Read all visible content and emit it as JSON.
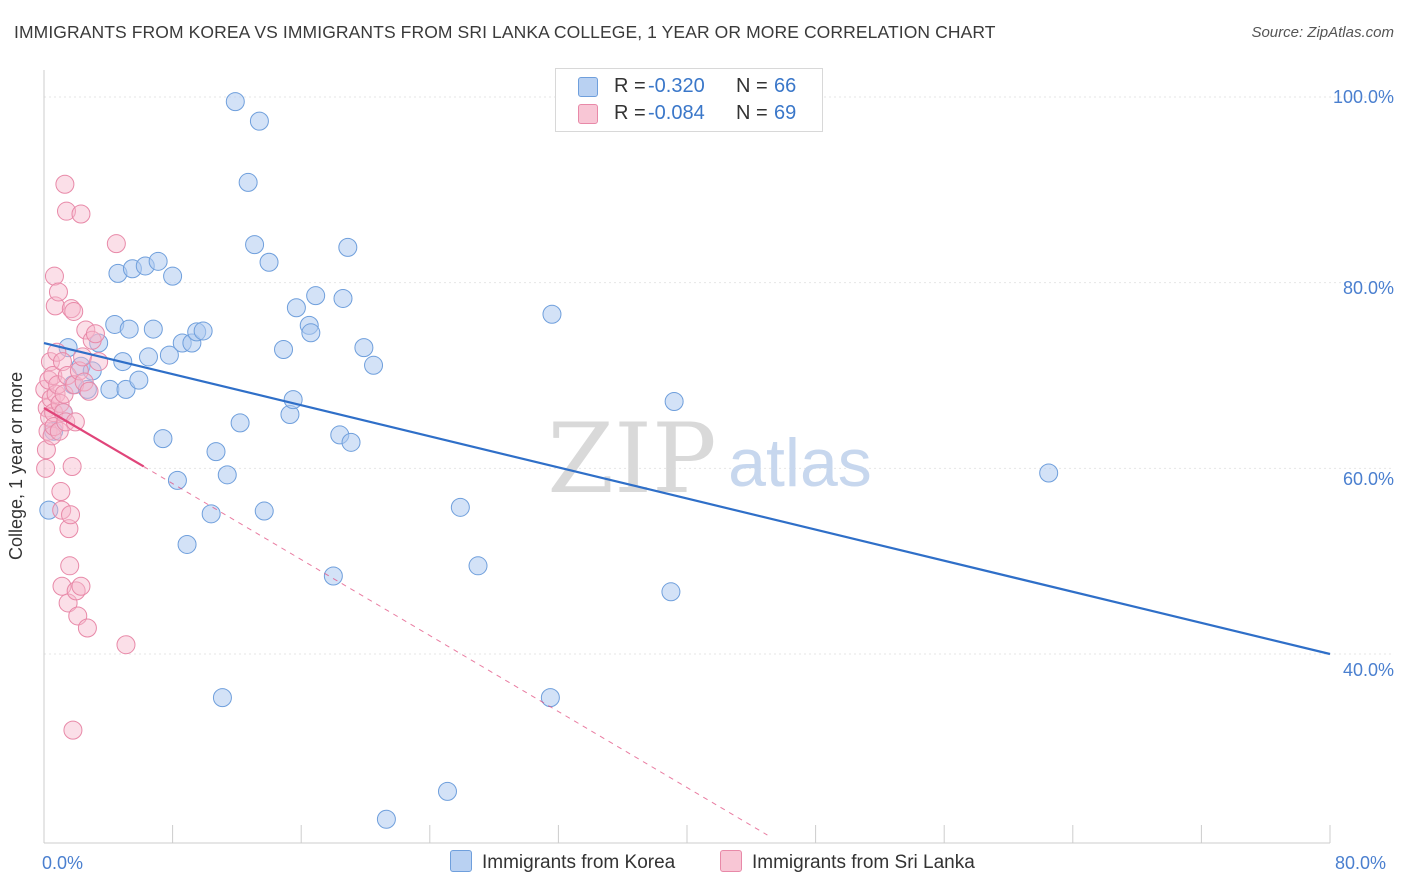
{
  "title": "IMMIGRANTS FROM KOREA VS IMMIGRANTS FROM SRI LANKA COLLEGE, 1 YEAR OR MORE CORRELATION CHART",
  "source": "Source: ZipAtlas.com",
  "watermark": {
    "zip": "ZIP",
    "atlas": "atlas"
  },
  "legend_top": {
    "rows": [
      {
        "r_label": "R =",
        "r_value": "-0.320",
        "n_label": "N =",
        "n_value": "66"
      },
      {
        "r_label": "R =",
        "r_value": "-0.084",
        "n_label": "N =",
        "n_value": "69"
      }
    ]
  },
  "legend_bottom": {
    "korea": "Immigrants from Korea",
    "srilanka": "Immigrants from Sri Lanka"
  },
  "colors": {
    "korea_fill": "#aecbf0",
    "korea_stroke": "#6f9fdc",
    "korea_line": "#2f6fc8",
    "srilanka_fill": "#f6b8cb",
    "srilanka_stroke": "#e889a8",
    "srilanka_line": "#e0457a",
    "tick_text": "#4a7fcf",
    "grid": "#e6e6e6"
  },
  "chart_data": {
    "type": "scatter",
    "title": "IMMIGRANTS FROM KOREA VS IMMIGRANTS FROM SRI LANKA COLLEGE, 1 YEAR OR MORE CORRELATION CHART",
    "xlabel": "",
    "ylabel": "College, 1 year or more",
    "xlim": [
      0,
      80
    ],
    "ylim": [
      20,
      102
    ],
    "x_tick_labels": [
      "0.0%",
      "80.0%"
    ],
    "y_ticks": [
      40,
      60,
      80,
      100
    ],
    "y_tick_labels": [
      "40.0%",
      "60.0%",
      "80.0%",
      "100.0%"
    ],
    "grid": true,
    "series": [
      {
        "name": "Immigrants from Korea",
        "r": -0.32,
        "n": 66,
        "trend": {
          "x0": 0,
          "y0": 73.5,
          "x1": 80,
          "y1": 40.0,
          "style": "solid"
        },
        "points": [
          [
            0.3,
            55.5
          ],
          [
            0.6,
            64
          ],
          [
            1.2,
            66
          ],
          [
            1.5,
            73
          ],
          [
            1.8,
            69
          ],
          [
            2.3,
            71
          ],
          [
            2.7,
            68.5
          ],
          [
            3.0,
            70.5
          ],
          [
            3.4,
            73.5
          ],
          [
            4.1,
            68.5
          ],
          [
            4.4,
            75.5
          ],
          [
            4.6,
            81
          ],
          [
            4.9,
            71.5
          ],
          [
            5.1,
            68.5
          ],
          [
            5.3,
            75
          ],
          [
            5.5,
            81.5
          ],
          [
            5.9,
            69.5
          ],
          [
            6.3,
            81.8
          ],
          [
            6.5,
            72
          ],
          [
            6.8,
            75
          ],
          [
            7.1,
            82.3
          ],
          [
            7.4,
            63.2
          ],
          [
            7.8,
            72.2
          ],
          [
            8.0,
            80.7
          ],
          [
            8.3,
            58.7
          ],
          [
            8.6,
            73.5
          ],
          [
            8.9,
            51.8
          ],
          [
            9.2,
            73.5
          ],
          [
            9.5,
            74.7
          ],
          [
            9.9,
            74.8
          ],
          [
            10.4,
            55.1
          ],
          [
            10.7,
            61.8
          ],
          [
            11.1,
            35.3
          ],
          [
            11.4,
            59.3
          ],
          [
            11.9,
            99.5
          ],
          [
            12.2,
            64.9
          ],
          [
            12.7,
            90.8
          ],
          [
            13.1,
            84.1
          ],
          [
            13.4,
            97.4
          ],
          [
            13.7,
            55.4
          ],
          [
            14.0,
            82.2
          ],
          [
            14.9,
            72.8
          ],
          [
            15.3,
            65.8
          ],
          [
            15.5,
            67.4
          ],
          [
            15.7,
            77.3
          ],
          [
            16.5,
            75.4
          ],
          [
            16.6,
            74.6
          ],
          [
            16.9,
            78.6
          ],
          [
            18.0,
            48.4
          ],
          [
            18.4,
            63.6
          ],
          [
            18.6,
            78.3
          ],
          [
            18.9,
            83.8
          ],
          [
            19.1,
            62.8
          ],
          [
            19.9,
            73.0
          ],
          [
            20.5,
            71.1
          ],
          [
            21.3,
            22.2
          ],
          [
            25.1,
            25.2
          ],
          [
            25.9,
            55.8
          ],
          [
            27.0,
            49.5
          ],
          [
            31.5,
            35.3
          ],
          [
            31.6,
            76.6
          ],
          [
            39.0,
            46.7
          ],
          [
            39.2,
            67.2
          ],
          [
            62.5,
            59.5
          ]
        ]
      },
      {
        "name": "Immigrants from Sri Lanka",
        "r": -0.084,
        "n": 69,
        "trend_solid": {
          "x0": 0,
          "y0": 66.5,
          "x1": 6.2,
          "y1": 60.2
        },
        "trend_dashed": {
          "x0": 6.2,
          "y0": 60.2,
          "x1": 45,
          "y1": 20.5
        },
        "points": [
          [
            0.05,
            68.5
          ],
          [
            0.1,
            60
          ],
          [
            0.15,
            62
          ],
          [
            0.2,
            66.5
          ],
          [
            0.25,
            64
          ],
          [
            0.3,
            69.5
          ],
          [
            0.35,
            65.5
          ],
          [
            0.4,
            71.5
          ],
          [
            0.45,
            67.5
          ],
          [
            0.5,
            63.5
          ],
          [
            0.55,
            70
          ],
          [
            0.6,
            66
          ],
          [
            0.62,
            64.5
          ],
          [
            0.65,
            80.7
          ],
          [
            0.7,
            77.5
          ],
          [
            0.75,
            68
          ],
          [
            0.8,
            72.5
          ],
          [
            0.85,
            69
          ],
          [
            0.9,
            79
          ],
          [
            0.95,
            64
          ],
          [
            1.0,
            67
          ],
          [
            1.05,
            57.5
          ],
          [
            1.1,
            55.5
          ],
          [
            1.12,
            47.3
          ],
          [
            1.15,
            71.5
          ],
          [
            1.2,
            66
          ],
          [
            1.25,
            68
          ],
          [
            1.3,
            90.6
          ],
          [
            1.35,
            65
          ],
          [
            1.4,
            87.7
          ],
          [
            1.45,
            70
          ],
          [
            1.5,
            45.5
          ],
          [
            1.55,
            53.5
          ],
          [
            1.6,
            49.5
          ],
          [
            1.65,
            55
          ],
          [
            1.7,
            77.2
          ],
          [
            1.75,
            60.2
          ],
          [
            1.8,
            31.8
          ],
          [
            1.85,
            76.9
          ],
          [
            1.9,
            69
          ],
          [
            1.95,
            65
          ],
          [
            2.0,
            46.8
          ],
          [
            2.1,
            44.1
          ],
          [
            2.2,
            70.5
          ],
          [
            2.3,
            47.3
          ],
          [
            2.4,
            72
          ],
          [
            2.5,
            69.3
          ],
          [
            2.3,
            87.4
          ],
          [
            2.6,
            74.9
          ],
          [
            2.7,
            42.8
          ],
          [
            2.8,
            68.3
          ],
          [
            3.0,
            73.8
          ],
          [
            3.2,
            74.5
          ],
          [
            3.4,
            71.5
          ],
          [
            4.5,
            84.2
          ],
          [
            5.1,
            41
          ]
        ]
      }
    ]
  }
}
